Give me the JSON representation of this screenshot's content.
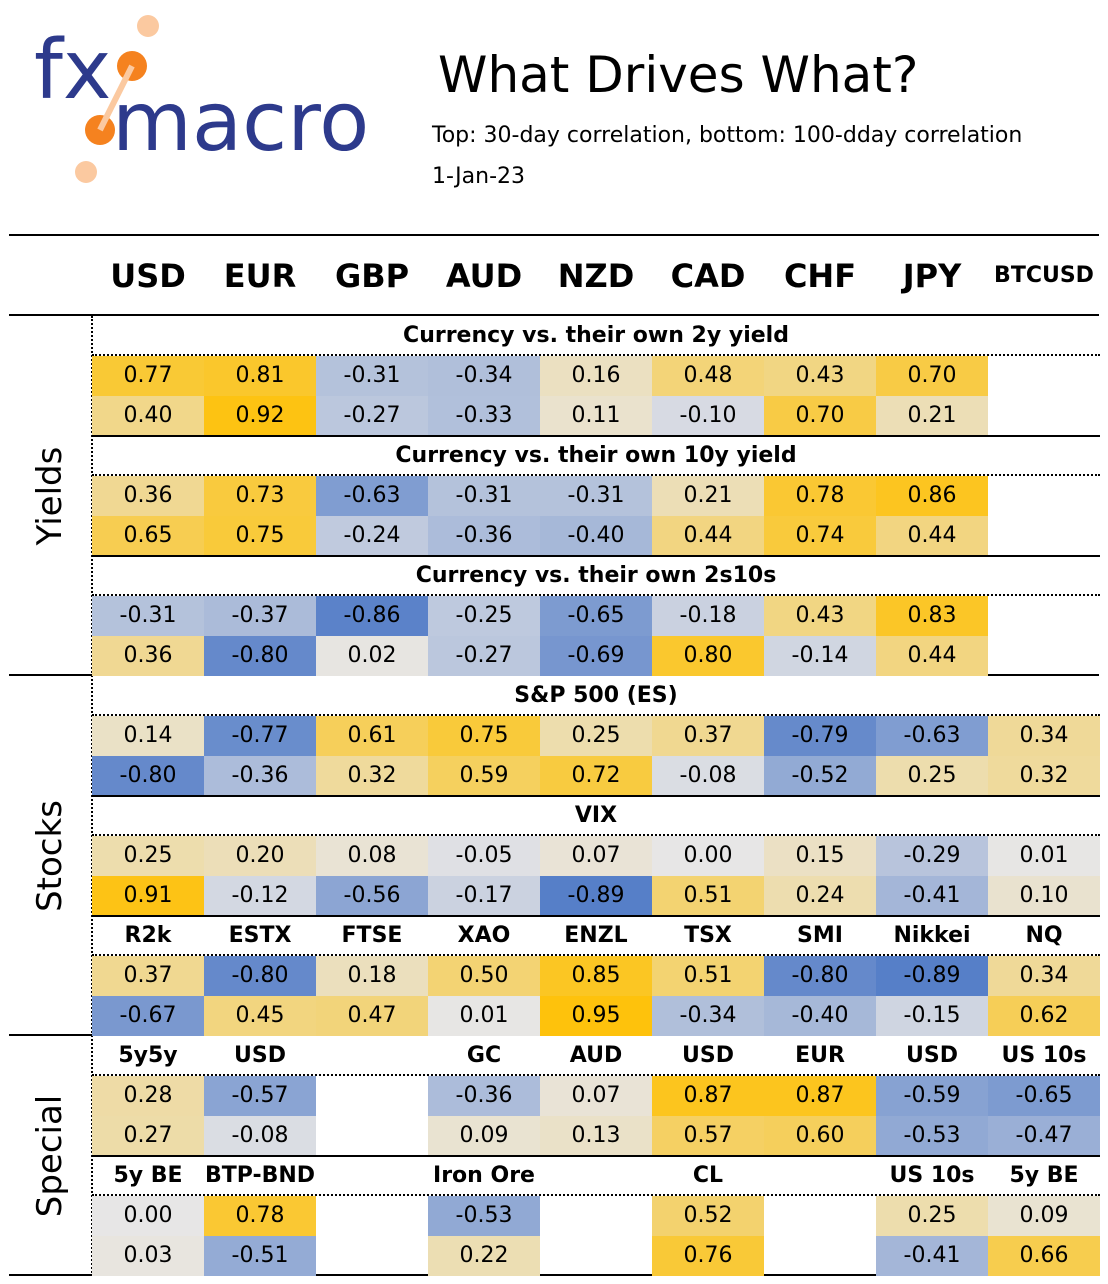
{
  "logo": {
    "text_top": "fx",
    "text_bottom": "macro",
    "text_color": "#2d3a8c",
    "dot_color": "#f5821f",
    "dot_light_color": "#fbc9a0"
  },
  "header": {
    "title": "What Drives What?",
    "subtitle": "Top: 30-day correlation, bottom: 100-dday correlation",
    "date": "1-Jan-23"
  },
  "columns": [
    "USD",
    "EUR",
    "GBP",
    "AUD",
    "NZD",
    "CAD",
    "CHF",
    "JPY",
    "BTCUSD"
  ],
  "groups": [
    "Yields",
    "Stocks",
    "Special"
  ],
  "colors": {
    "positive": "#ffc000",
    "negative": "#4472c4",
    "neutral": "#e7e6e6"
  },
  "chart_data": {
    "type": "table",
    "title": "What Drives What?",
    "rows_note": "Top: 30-day correlation, bottom: 100-dday correlation",
    "sections": [
      {
        "group": "Yields",
        "title": "Currency vs. their own 2y yield",
        "labels": null,
        "top": [
          0.77,
          0.81,
          -0.31,
          -0.34,
          0.16,
          0.48,
          0.43,
          0.7,
          null
        ],
        "bottom": [
          0.4,
          0.92,
          -0.27,
          -0.33,
          0.11,
          -0.1,
          0.7,
          0.21,
          null
        ]
      },
      {
        "group": "Yields",
        "title": "Currency vs. their own 10y yield",
        "labels": null,
        "top": [
          0.36,
          0.73,
          -0.63,
          -0.31,
          -0.31,
          0.21,
          0.78,
          0.86,
          null
        ],
        "bottom": [
          0.65,
          0.75,
          -0.24,
          -0.36,
          -0.4,
          0.44,
          0.74,
          0.44,
          null
        ]
      },
      {
        "group": "Yields",
        "title": "Currency vs. their own 2s10s",
        "labels": null,
        "top": [
          -0.31,
          -0.37,
          -0.86,
          -0.25,
          -0.65,
          -0.18,
          0.43,
          0.83,
          null
        ],
        "bottom": [
          0.36,
          -0.8,
          0.02,
          -0.27,
          -0.69,
          0.8,
          -0.14,
          0.44,
          null
        ]
      },
      {
        "group": "Stocks",
        "title": "S&P 500 (ES)",
        "labels": null,
        "top": [
          0.14,
          -0.77,
          0.61,
          0.75,
          0.25,
          0.37,
          -0.79,
          -0.63,
          0.34
        ],
        "bottom": [
          -0.8,
          -0.36,
          0.32,
          0.59,
          0.72,
          -0.08,
          -0.52,
          0.25,
          0.32
        ]
      },
      {
        "group": "Stocks",
        "title": "VIX",
        "labels": null,
        "top": [
          0.25,
          0.2,
          0.08,
          -0.05,
          0.07,
          0.0,
          0.15,
          -0.29,
          0.01
        ],
        "bottom": [
          0.91,
          -0.12,
          -0.56,
          -0.17,
          -0.89,
          0.51,
          0.24,
          -0.41,
          0.1
        ]
      },
      {
        "group": "Stocks",
        "title": null,
        "labels": [
          "R2k",
          "ESTX",
          "FTSE",
          "XAO",
          "ENZL",
          "TSX",
          "SMI",
          "Nikkei",
          "NQ"
        ],
        "top": [
          0.37,
          -0.8,
          0.18,
          0.5,
          0.85,
          0.51,
          -0.8,
          -0.89,
          0.34
        ],
        "bottom": [
          -0.67,
          0.45,
          0.47,
          0.01,
          0.95,
          -0.34,
          -0.4,
          -0.15,
          0.62
        ]
      },
      {
        "group": "Special",
        "title": null,
        "labels": [
          "5y5y",
          "USD",
          null,
          "GC",
          "AUD",
          "USD",
          "EUR",
          "USD",
          "US 10s"
        ],
        "top": [
          0.28,
          -0.57,
          null,
          -0.36,
          0.07,
          0.87,
          0.87,
          -0.59,
          -0.65
        ],
        "bottom": [
          0.27,
          -0.08,
          null,
          0.09,
          0.13,
          0.57,
          0.6,
          -0.53,
          -0.47
        ]
      },
      {
        "group": "Special",
        "title": null,
        "labels": [
          "5y BE",
          "BTP-BND",
          null,
          "Iron Ore",
          null,
          "CL",
          null,
          "US 10s",
          "5y BE"
        ],
        "top": [
          0.0,
          0.78,
          null,
          -0.53,
          null,
          0.52,
          null,
          0.25,
          0.09
        ],
        "bottom": [
          0.03,
          -0.51,
          null,
          0.22,
          null,
          0.76,
          null,
          -0.41,
          0.66
        ]
      }
    ]
  }
}
